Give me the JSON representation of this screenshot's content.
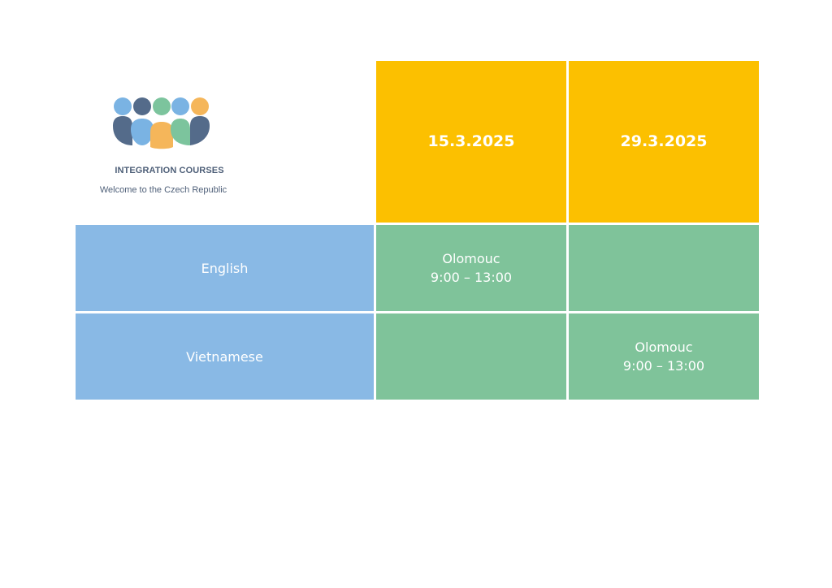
{
  "logo": {
    "title": "INTEGRATION COURSES",
    "subtitle": "Welcome to the Czech Republic",
    "colors": {
      "blue_light": "#7ab3e3",
      "blue_dark": "#546b8a",
      "green": "#7cc49d",
      "orange": "#f5b65a"
    }
  },
  "schedule": {
    "dates": [
      "15.3.2025",
      "29.3.2025"
    ],
    "rows": [
      {
        "language": "English",
        "slots": [
          {
            "city": "Olomouc",
            "time": "9:00 – 13:00"
          },
          {
            "city": "",
            "time": ""
          }
        ]
      },
      {
        "language": "Vietnamese",
        "slots": [
          {
            "city": "",
            "time": ""
          },
          {
            "city": "Olomouc",
            "time": "9:00 – 13:00"
          }
        ]
      }
    ]
  },
  "colors": {
    "date_header": "#fcc000",
    "language_cell": "#89b9e5",
    "slot_cell": "#7fc39a"
  }
}
